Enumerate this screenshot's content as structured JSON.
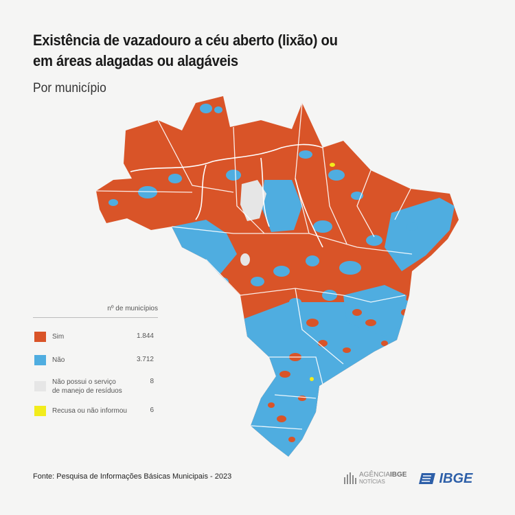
{
  "header": {
    "title_line1": "Existência de vazadouro a céu aberto (lixão) ou",
    "title_line2": "em áreas alagadas ou alagáveis",
    "subtitle": "Por município"
  },
  "legend": {
    "header": "nº de municípios",
    "items": [
      {
        "label": "Sim",
        "count": "1.844",
        "color": "#d95428"
      },
      {
        "label": "Não",
        "count": "3.712",
        "color": "#4fade0"
      },
      {
        "label_line1": "Não possui o serviço",
        "label_line2": "de manejo de resíduos",
        "count": "8",
        "color": "#e6e6e6"
      },
      {
        "label": "Recusa ou não informou",
        "count": "6",
        "color": "#f2ec1c"
      }
    ]
  },
  "footer": {
    "source": "Fonte: Pesquisa de Informações Básicas Municipais - 2023",
    "agencia_line1": "AGÊNCIA",
    "agencia_line1_bold": "IBGE",
    "agencia_line2": "NOTÍCIAS",
    "ibge_logo": "IBGE"
  }
}
